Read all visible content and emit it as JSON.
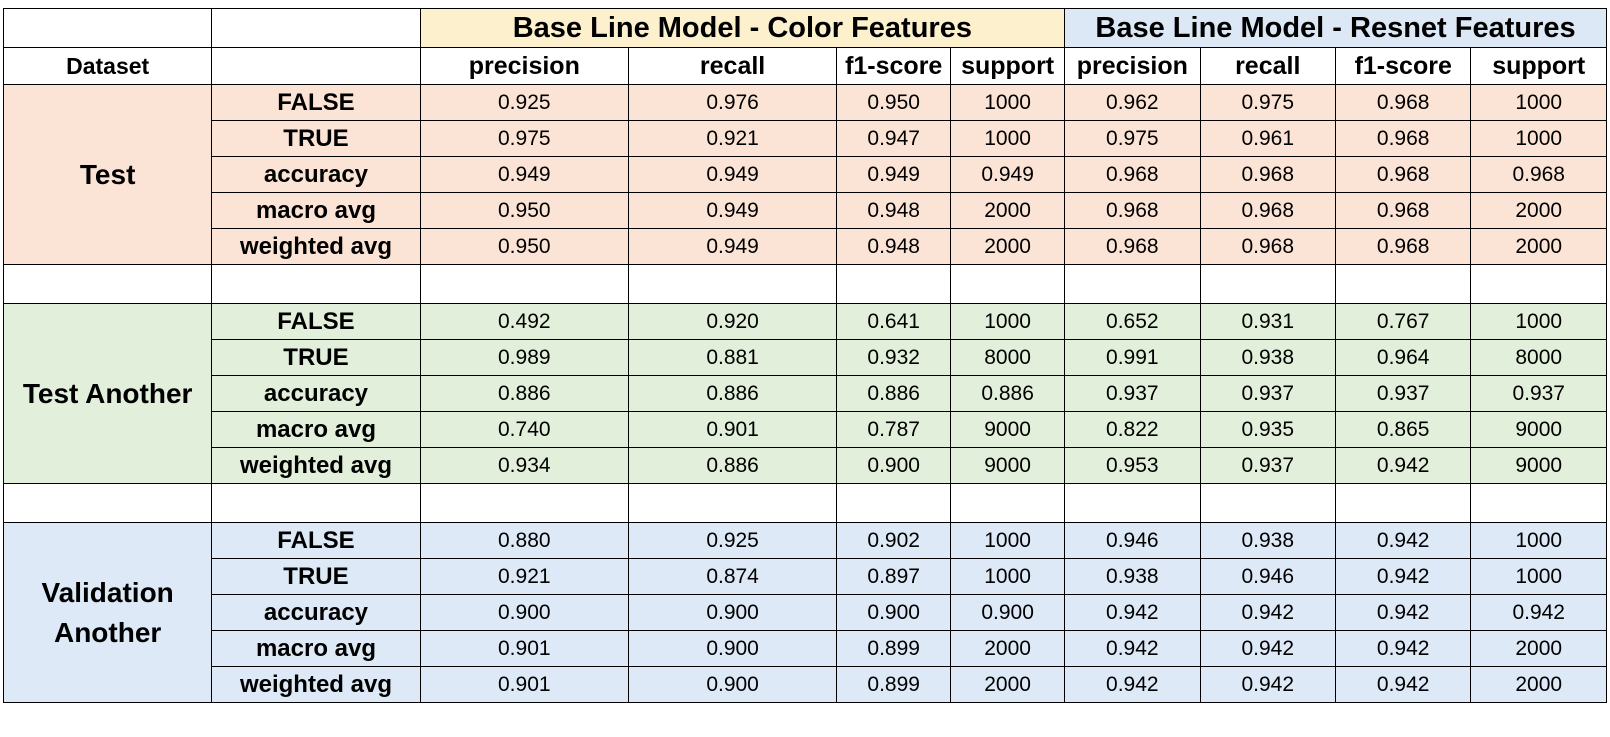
{
  "header": {
    "dataset_label": "Dataset",
    "groups": [
      {
        "title": "Base Line Model - Color Features",
        "color": "#fdf0cc"
      },
      {
        "title": "Base Line Model - Resnet Features",
        "color": "#dce8f5"
      }
    ],
    "columns": [
      "precision",
      "recall",
      "f1-score",
      "support"
    ]
  },
  "sections": [
    {
      "name": "Test",
      "color": "#fbe4d6",
      "rows": [
        {
          "metric": "FALSE",
          "color": [
            "0.925",
            "0.976",
            "0.950",
            "1000"
          ],
          "resnet": [
            "0.962",
            "0.975",
            "0.968",
            "1000"
          ]
        },
        {
          "metric": "TRUE",
          "color": [
            "0.975",
            "0.921",
            "0.947",
            "1000"
          ],
          "resnet": [
            "0.975",
            "0.961",
            "0.968",
            "1000"
          ]
        },
        {
          "metric": "accuracy",
          "color": [
            "0.949",
            "0.949",
            "0.949",
            "0.949"
          ],
          "resnet": [
            "0.968",
            "0.968",
            "0.968",
            "0.968"
          ]
        },
        {
          "metric": "macro avg",
          "color": [
            "0.950",
            "0.949",
            "0.948",
            "2000"
          ],
          "resnet": [
            "0.968",
            "0.968",
            "0.968",
            "2000"
          ]
        },
        {
          "metric": "weighted avg",
          "color": [
            "0.950",
            "0.949",
            "0.948",
            "2000"
          ],
          "resnet": [
            "0.968",
            "0.968",
            "0.968",
            "2000"
          ]
        }
      ]
    },
    {
      "name": "Test Another",
      "color": "#e2efda",
      "rows": [
        {
          "metric": "FALSE",
          "color": [
            "0.492",
            "0.920",
            "0.641",
            "1000"
          ],
          "resnet": [
            "0.652",
            "0.931",
            "0.767",
            "1000"
          ]
        },
        {
          "metric": "TRUE",
          "color": [
            "0.989",
            "0.881",
            "0.932",
            "8000"
          ],
          "resnet": [
            "0.991",
            "0.938",
            "0.964",
            "8000"
          ]
        },
        {
          "metric": "accuracy",
          "color": [
            "0.886",
            "0.886",
            "0.886",
            "0.886"
          ],
          "resnet": [
            "0.937",
            "0.937",
            "0.937",
            "0.937"
          ]
        },
        {
          "metric": "macro avg",
          "color": [
            "0.740",
            "0.901",
            "0.787",
            "9000"
          ],
          "resnet": [
            "0.822",
            "0.935",
            "0.865",
            "9000"
          ]
        },
        {
          "metric": "weighted avg",
          "color": [
            "0.934",
            "0.886",
            "0.900",
            "9000"
          ],
          "resnet": [
            "0.953",
            "0.937",
            "0.942",
            "9000"
          ]
        }
      ]
    },
    {
      "name": "Validation Another",
      "color": "#dde9f6",
      "rows": [
        {
          "metric": "FALSE",
          "color": [
            "0.880",
            "0.925",
            "0.902",
            "1000"
          ],
          "resnet": [
            "0.946",
            "0.938",
            "0.942",
            "1000"
          ]
        },
        {
          "metric": "TRUE",
          "color": [
            "0.921",
            "0.874",
            "0.897",
            "1000"
          ],
          "resnet": [
            "0.938",
            "0.946",
            "0.942",
            "1000"
          ]
        },
        {
          "metric": "accuracy",
          "color": [
            "0.900",
            "0.900",
            "0.900",
            "0.900"
          ],
          "resnet": [
            "0.942",
            "0.942",
            "0.942",
            "0.942"
          ]
        },
        {
          "metric": "macro avg",
          "color": [
            "0.901",
            "0.900",
            "0.899",
            "2000"
          ],
          "resnet": [
            "0.942",
            "0.942",
            "0.942",
            "2000"
          ]
        },
        {
          "metric": "weighted avg",
          "color": [
            "0.901",
            "0.900",
            "0.899",
            "2000"
          ],
          "resnet": [
            "0.942",
            "0.942",
            "0.942",
            "2000"
          ]
        }
      ]
    }
  ]
}
